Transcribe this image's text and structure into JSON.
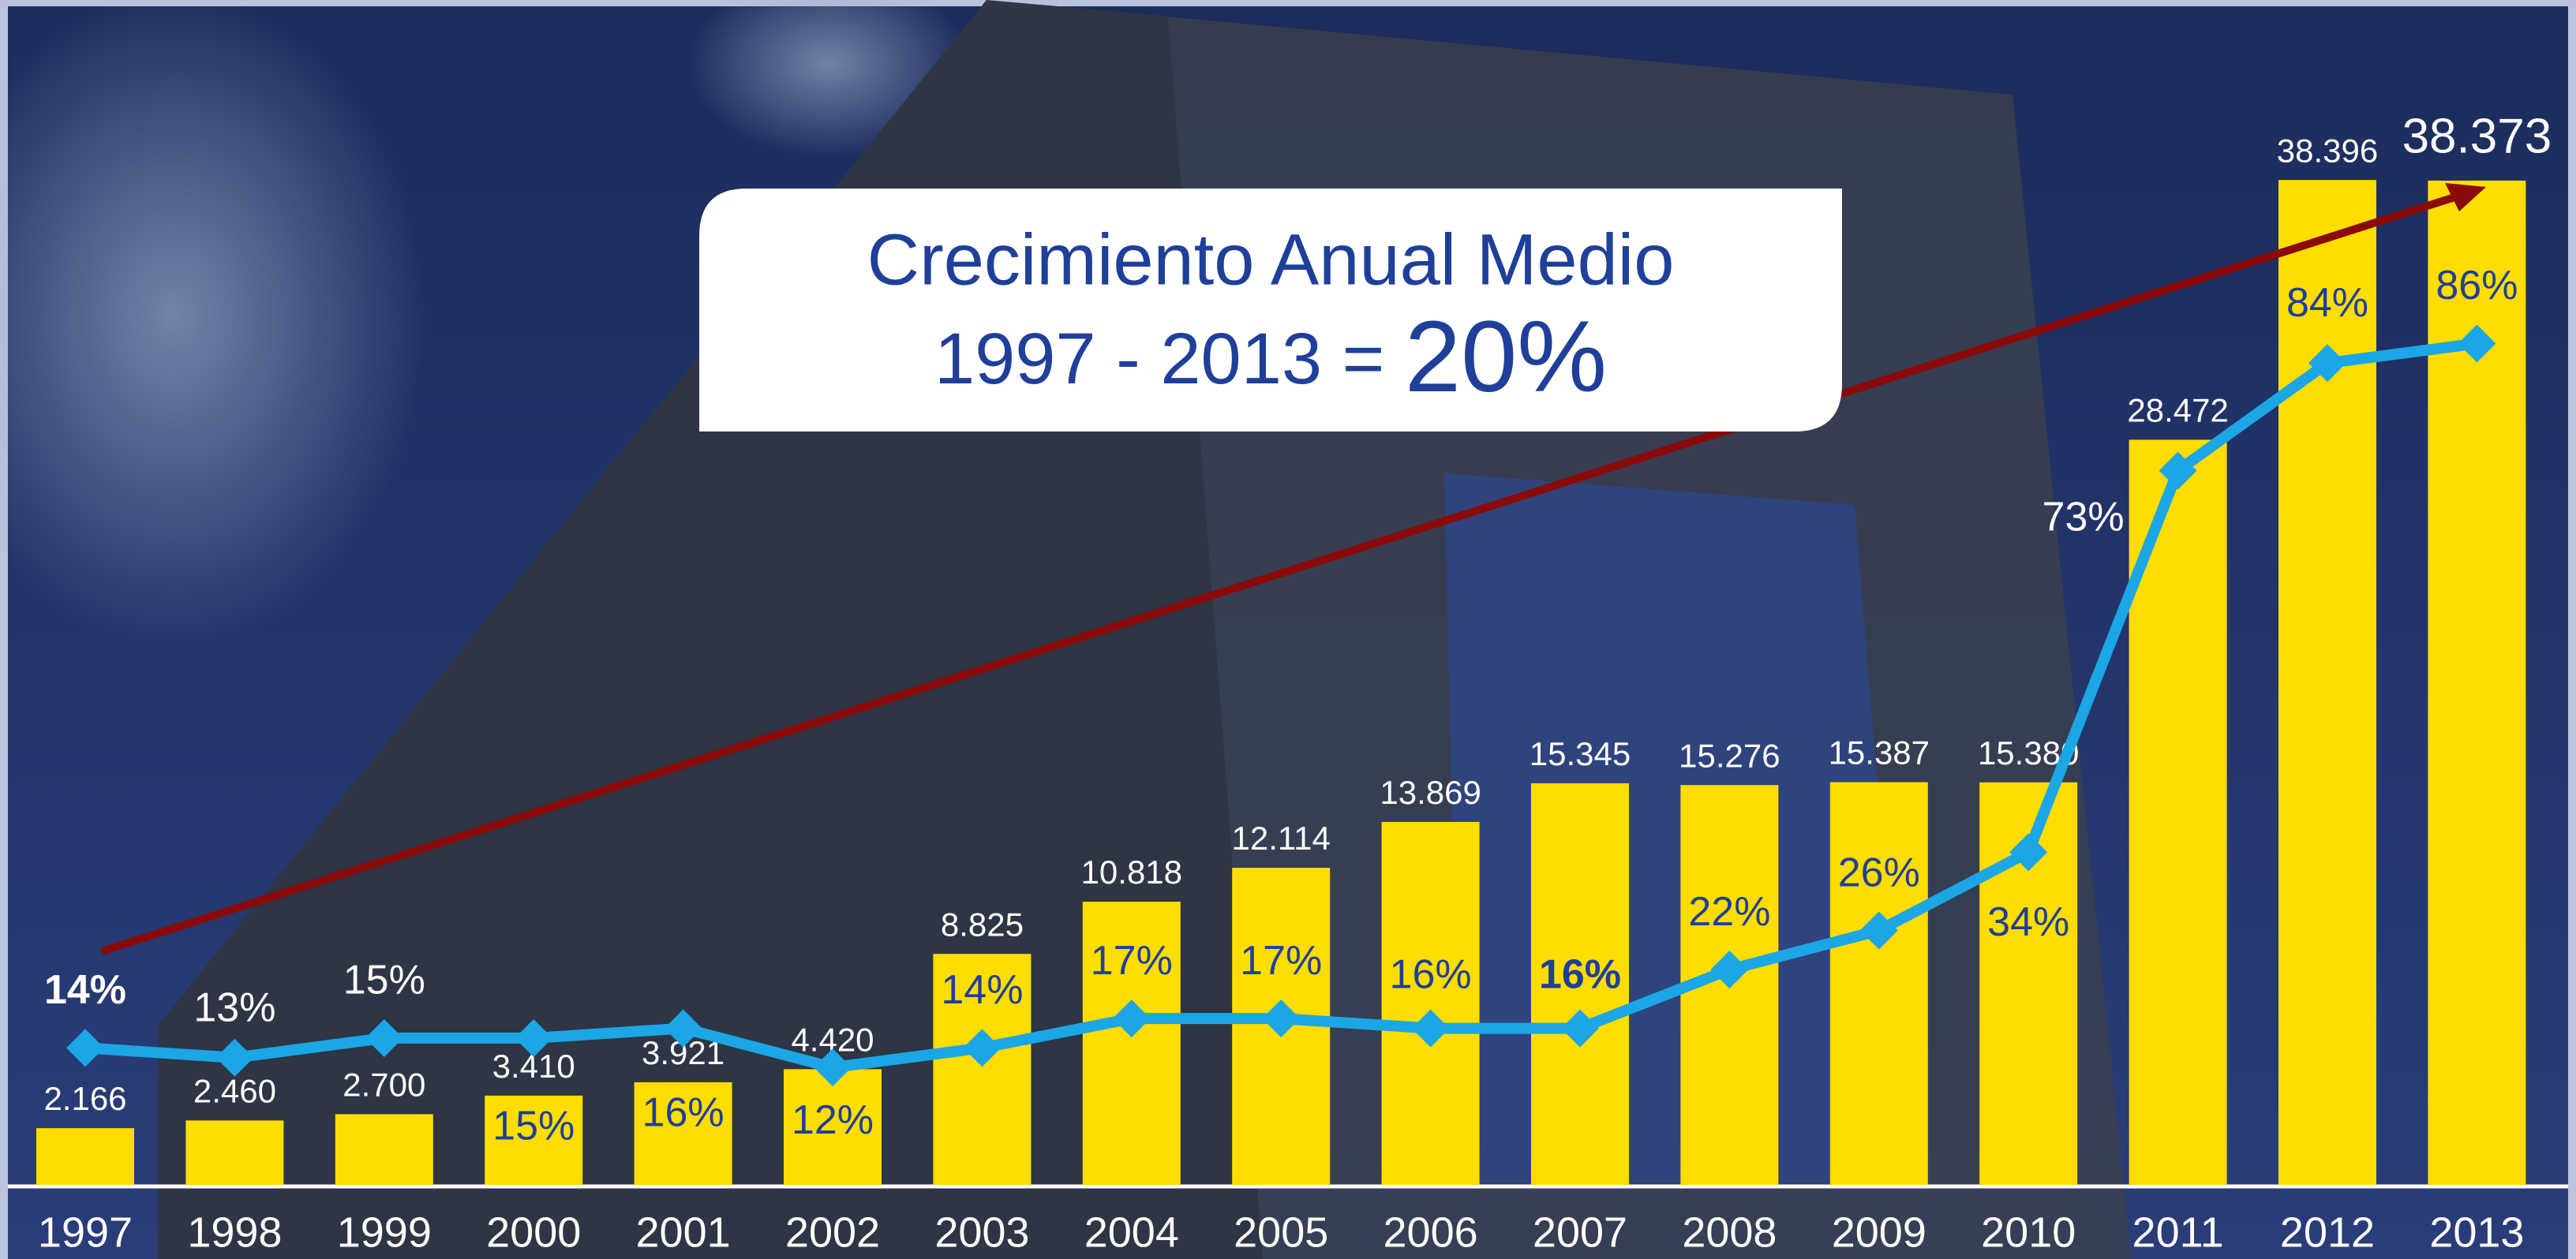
{
  "chart_data": {
    "type": "bar-line",
    "title": "Crecimiento Anual Medio",
    "subtitle": "1997 - 2013 = ",
    "highlight": "20%",
    "categories": [
      "1997",
      "1998",
      "1999",
      "2000",
      "2001",
      "2002",
      "2003",
      "2004",
      "2005",
      "2006",
      "2007",
      "2008",
      "2009",
      "2010",
      "2011",
      "2012",
      "2013"
    ],
    "series": [
      {
        "type": "bar",
        "color": "#ffdd00",
        "values": [
          2166,
          2460,
          2700,
          3410,
          3921,
          4420,
          8825,
          10818,
          12114,
          13869,
          15345,
          15276,
          15387,
          15380,
          28472,
          38396,
          38373
        ],
        "value_labels": [
          "2.166",
          "2.460",
          "2.700",
          "3.410",
          "3.921",
          "4.420",
          "8.825",
          "10.818",
          "12.114",
          "13.869",
          "15.345",
          "15.276",
          "15.387",
          "15.380",
          "28.472",
          "38.396",
          "38.373"
        ]
      },
      {
        "type": "line",
        "axis": "y2",
        "color": "#1ba6e6",
        "values": [
          14,
          13,
          15,
          15,
          16,
          12,
          14,
          17,
          17,
          16,
          16,
          22,
          26,
          34,
          73,
          84,
          86
        ],
        "value_labels": [
          "14%",
          "13%",
          "15%",
          "15%",
          "16%",
          "12%",
          "14%",
          "17%",
          "17%",
          "16%",
          "16%",
          "22%",
          "26%",
          "34%",
          "73%",
          "84%",
          "86%"
        ]
      }
    ],
    "ylim": [
      0,
      40000
    ],
    "y2lim": [
      0,
      107
    ]
  }
}
